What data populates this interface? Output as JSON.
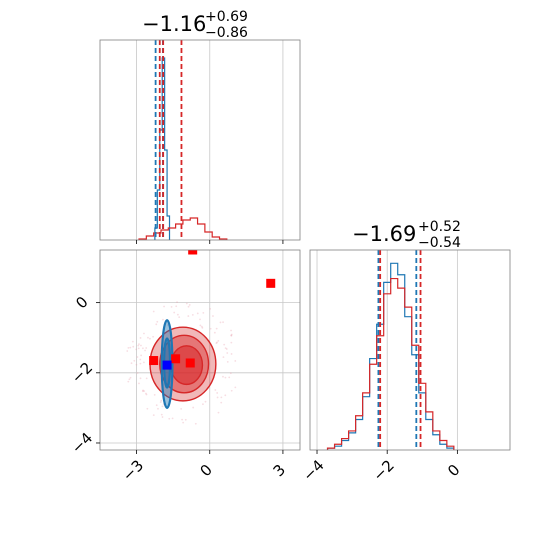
{
  "colors": {
    "red": "#d62728",
    "blue": "#1f77b4",
    "dark_marker": "#0000ff",
    "red_marker": "#ff0000",
    "grid": "#c8c8c8",
    "frame": "#808080"
  },
  "chart_data": [
    {
      "type": "histogram",
      "panel": "top-left",
      "title": {
        "main": "−1.16",
        "sup": "+0.69",
        "sub": "−0.86"
      },
      "xlim": [
        -4.5,
        3.7
      ],
      "ylim": [
        0,
        1.0
      ],
      "grid": true,
      "red_series": {
        "edges": [
          -2.9,
          -2.6,
          -2.3,
          -2.0,
          -1.7,
          -1.4,
          -1.1,
          -0.8,
          -0.5,
          -0.2,
          0.1,
          0.4,
          0.7
        ],
        "heights": [
          0.005,
          0.02,
          0.035,
          0.05,
          0.06,
          0.08,
          0.1,
          0.11,
          0.08,
          0.04,
          0.015,
          0.005
        ]
      },
      "blue_series": {
        "edges": [
          -2.25,
          -2.15,
          -2.05,
          -1.95,
          -1.85,
          -1.75,
          -1.65
        ],
        "heights": [
          0.06,
          0.25,
          0.55,
          0.91,
          0.45,
          0.12
        ]
      },
      "quantile_lines": [
        {
          "series": "blue",
          "x": -2.22,
          "dashed": true
        },
        {
          "series": "red",
          "x": -2.05,
          "dashed": true
        },
        {
          "series": "red",
          "x": -1.16,
          "dashed": true
        },
        {
          "series": "blue",
          "x": -1.92,
          "dashed": true
        },
        {
          "series": "red",
          "x": -1.91,
          "dashed": true
        }
      ]
    },
    {
      "type": "scatter_contour",
      "panel": "bottom-left",
      "xlim": [
        -4.5,
        3.7
      ],
      "ylim": [
        -4.2,
        1.5
      ],
      "xticks": [
        "−3",
        "0",
        "3"
      ],
      "xtick_values": [
        -3,
        0,
        3
      ],
      "yticks": [
        "−4",
        "−2",
        "0"
      ],
      "ytick_values": [
        -4,
        -2,
        0
      ],
      "grid": true,
      "red_markers": [
        {
          "x": -2.3,
          "y": -1.65
        },
        {
          "x": -1.4,
          "y": -1.6
        },
        {
          "x": -0.8,
          "y": -1.72
        },
        {
          "x": -0.7,
          "y": 1.5
        },
        {
          "x": 2.5,
          "y": 0.55
        }
      ],
      "blue_marker": {
        "x": -1.75,
        "y": -1.78
      },
      "red_contours": [
        {
          "cx": -1.1,
          "cy": -1.75,
          "rx": 1.35,
          "ry": 1.05,
          "opacity": 0.55
        },
        {
          "cx": -1.05,
          "cy": -1.75,
          "rx": 1.0,
          "ry": 0.82,
          "opacity": 0.75
        },
        {
          "cx": -0.95,
          "cy": -1.78,
          "rx": 0.65,
          "ry": 0.55,
          "opacity": 0.95
        }
      ],
      "blue_contours": [
        {
          "cx": -1.75,
          "cy": -1.75,
          "rx": 0.22,
          "ry": 1.25
        },
        {
          "cx": -1.75,
          "cy": -1.72,
          "rx": 0.12,
          "ry": 0.7
        }
      ]
    },
    {
      "type": "histogram",
      "panel": "bottom-right",
      "title": {
        "main": "−1.69",
        "sup": "+0.52",
        "sub": "−0.54"
      },
      "xlim": [
        -4.2,
        1.5
      ],
      "ylim": [
        0,
        1.05
      ],
      "xticks": [
        "−4",
        "−2",
        "0"
      ],
      "xtick_values": [
        -4,
        -2,
        0
      ],
      "grid": true,
      "red_series": {
        "edges": [
          -3.7,
          -3.5,
          -3.3,
          -3.1,
          -2.9,
          -2.7,
          -2.5,
          -2.3,
          -2.1,
          -1.9,
          -1.7,
          -1.5,
          -1.3,
          -1.1,
          -0.9,
          -0.7,
          -0.5,
          -0.3,
          -0.1
        ],
        "heights": [
          0.01,
          0.03,
          0.06,
          0.1,
          0.18,
          0.3,
          0.45,
          0.6,
          0.82,
          0.9,
          0.85,
          0.75,
          0.55,
          0.35,
          0.2,
          0.1,
          0.05,
          0.02
        ]
      },
      "blue_series": {
        "edges": [
          -3.7,
          -3.5,
          -3.3,
          -3.1,
          -2.9,
          -2.7,
          -2.5,
          -2.3,
          -2.1,
          -1.9,
          -1.7,
          -1.5,
          -1.3,
          -1.1,
          -0.9,
          -0.7,
          -0.5,
          -0.3,
          -0.1
        ],
        "heights": [
          0.01,
          0.02,
          0.05,
          0.09,
          0.16,
          0.28,
          0.48,
          0.66,
          0.88,
          0.98,
          0.92,
          0.7,
          0.5,
          0.3,
          0.16,
          0.08,
          0.03,
          0.01
        ]
      },
      "quantile_lines": [
        {
          "series": "blue",
          "x": -2.25,
          "dashed": true
        },
        {
          "series": "red",
          "x": -2.2,
          "dashed": true
        },
        {
          "series": "blue",
          "x": -1.17,
          "dashed": true
        },
        {
          "series": "red",
          "x": -1.05,
          "dashed": true
        }
      ]
    }
  ]
}
